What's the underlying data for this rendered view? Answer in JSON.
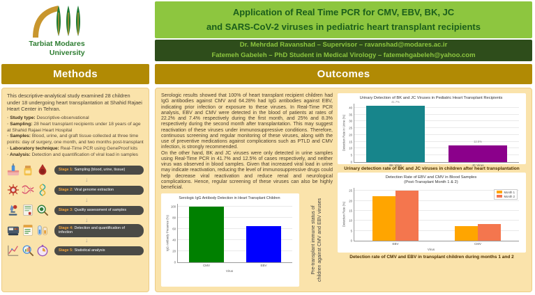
{
  "header": {
    "logo_line1": "Tarbiat Modares",
    "logo_line2": "University",
    "title_line1": "Application of Real Time PCR for CMV, EBV, BK, JC",
    "title_line2": "and SARS-CoV-2 viruses in pediatric heart transplant recipients",
    "credit_line1": "Dr. Mehrdad Ravanshad – Supervisor – ravanshad@modares.ac.ir",
    "credit_line2": "Fatemeh Gabeleh – PhD Student in Medical Virology – fatemehgabeleh@yahoo.com"
  },
  "methods": {
    "heading": "Methods",
    "intro": "This descriptive-analytical study examined 28 children under 18 undergoing heart transplantation at Shahid Rajaei Heart Center in Tehran.",
    "bullets": [
      {
        "label": "Study type:",
        "text": " Descriptive-observational"
      },
      {
        "label": "Sampling:",
        "text": " 28 heart transplant recipients under 18 years of age at Shahid Rajaei Heart Hospital"
      },
      {
        "label": "Samples:",
        "text": " Blood, urine, and graft tissue collected at three time points: day of surgery, one month, and two months post-transplant"
      },
      {
        "label": "Laboratory technique:",
        "text": " Real-Time PCR using GeneProof kits"
      },
      {
        "label": "Analysis:",
        "text": " Detection and quantification of viral load in samples"
      }
    ],
    "stages": [
      {
        "label": "Stage 1:",
        "text": " Sampling (blood, urine, tissue)",
        "icons": [
          "syringe-icon",
          "sample-jar-icon",
          "blood-sample-icon"
        ]
      },
      {
        "label": "Stage 2:",
        "text": " Viral genome extraction",
        "icons": [
          "virus-icon",
          "dna-strand-icon",
          "dna-helix-icon"
        ]
      },
      {
        "label": "Stage 3:",
        "text": " Quality assessment of samples",
        "icons": [
          "microscope-icon",
          "report-icon",
          "magnifier-virus-icon"
        ]
      },
      {
        "label": "Stage 4:",
        "text": " Detection and quantification of infection",
        "icons": [
          "pcr-machine-icon",
          "pcr-checklist-icon",
          "test-kit-icon"
        ]
      },
      {
        "label": "Stage 5:",
        "text": " Statistical analysis",
        "icons": [
          "stats-chart-icon",
          "magnifier-chart-icon",
          "timer-icon"
        ]
      }
    ]
  },
  "outcomes": {
    "heading": "Outcomes",
    "para1": "Serologic results showed that 100% of heart transplant recipient children had IgG antibodies against CMV and 64.28% had IgG antibodies against EBV, indicating prior infection or exposure to these viruses. In Real-Time PCR analysis, EBV and CMV were detected in the blood of patients at rates of 22.2% and 7.4% respectively during the first month, and 25% and 8.3% respectively during the second month after transplantation. This may suggest reactivation of these viruses under immunosuppressive conditions. Therefore, continuous screening and regular monitoring of these viruses, along with the use of preventive medications against complications such as PTLD and CMV infection, is strongly recommended.",
    "para2": "On the other hand, BK and JC viruses were only detected in urine samples using Real-Time PCR in 41.7% and 12.5% of cases respectively, and neither virus was observed in blood samples. Given that increased viral load in urine may indicate reactivation, reducing the level of immunosuppressive drugs could help decrease viral reactivation and reduce renal and neurological complications. Hence, regular screening of these viruses can also be highly beneficial.",
    "serologic_rotated_caption": "Pre-transplant immune status of children against CMV and EBV viruses",
    "urinary_caption": "Urinary detection rate of BK and JC viruses in children after heart transplantation",
    "blood_caption": "Detection rate of CMV and EBV in transplant children during months 1 and 2"
  },
  "colors": {
    "light_green": "#8dc63f",
    "dark_green": "#2e4d1b",
    "gold": "#b18a04",
    "cream": "#fae3ab",
    "cmv_bar": "#008000",
    "ebv_bar": "#0000ff",
    "bk_bar": "#17858b",
    "jc_bar": "#8b008b",
    "month1_bar": "#ffa500",
    "month2_bar": "#f4764e"
  },
  "chart_data": [
    {
      "type": "bar",
      "title": "Serologic IgG Antibody Detection in Heart Transplant Children",
      "categories": [
        "CMV",
        "EBV"
      ],
      "values": [
        100,
        64.28
      ],
      "colors": [
        "#008000",
        "#0000ff"
      ],
      "xlabel": "Virus",
      "ylabel": "IgG Antibody Presence (%)",
      "ylim": [
        0,
        105
      ],
      "yticks": [
        0,
        20,
        40,
        60,
        80,
        100
      ],
      "bar_frac": 0.62,
      "grid": true
    },
    {
      "type": "bar",
      "title": "Urinary Detection of BK and JC Viruses in Pediatric Heart Transplant Recipients",
      "categories": [
        "BK Virus",
        "JC Virus"
      ],
      "values": [
        41.7,
        12.5
      ],
      "bar_labels": [
        "41.7%",
        "12.5%"
      ],
      "colors": [
        "#17858b",
        "#8b008b"
      ],
      "xlabel": "",
      "ylabel": "Detection Rate in Urine (%)",
      "ylim": [
        0,
        43
      ],
      "yticks": [
        0,
        5,
        10,
        15,
        20,
        25,
        30,
        35,
        40
      ],
      "bar_frac": 0.72,
      "grid": true
    },
    {
      "type": "bar",
      "title": "Detection Rate of EBV and CMV in Blood Samples",
      "subtitle": "(Post-Transplant Month 1 & 2)",
      "categories": [
        "EBV",
        "CMV"
      ],
      "series": [
        {
          "name": "Month 1",
          "color": "#ffa500",
          "values": [
            22.2,
            7.4
          ]
        },
        {
          "name": "Month 2",
          "color": "#f4764e",
          "values": [
            25,
            8.3
          ]
        }
      ],
      "xlabel": "Virus",
      "ylabel": "Detection Rate (%)",
      "ylim": [
        0,
        26.5
      ],
      "yticks": [
        0,
        5,
        10,
        15,
        20,
        25
      ],
      "bar_frac": 0.28,
      "legend_position": "top-right",
      "grid": true
    }
  ]
}
